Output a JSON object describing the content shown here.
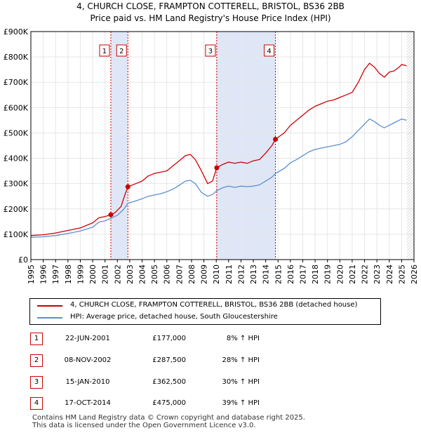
{
  "colors": {
    "property_line": "#cc0000",
    "hpi_line": "#5b8fd0",
    "band_fill": "#dfe7f7",
    "grid": "#e6e6e6",
    "marker_line": "#cc0000"
  },
  "chart_data": {
    "type": "line",
    "title": "4, CHURCH CLOSE, FRAMPTON COTTERELL, BRISTOL, BS36 2BB",
    "subtitle": "Price paid vs. HM Land Registry's House Price Index (HPI)",
    "xlabel": "",
    "ylabel": "",
    "xlim": [
      1995,
      2026
    ],
    "ylim": [
      0,
      900000
    ],
    "grid": true,
    "x_ticks": [
      "1995",
      "1996",
      "1997",
      "1998",
      "1999",
      "2000",
      "2001",
      "2002",
      "2003",
      "2004",
      "2005",
      "2006",
      "2007",
      "2008",
      "2009",
      "2010",
      "2011",
      "2012",
      "2013",
      "2014",
      "2015",
      "2016",
      "2017",
      "2018",
      "2019",
      "2020",
      "2021",
      "2022",
      "2023",
      "2024",
      "2025",
      "2026"
    ],
    "y_ticks": [
      {
        "value": 0,
        "label": "£0"
      },
      {
        "value": 100000,
        "label": "£100K"
      },
      {
        "value": 200000,
        "label": "£200K"
      },
      {
        "value": 300000,
        "label": "£300K"
      },
      {
        "value": 400000,
        "label": "£400K"
      },
      {
        "value": 500000,
        "label": "£500K"
      },
      {
        "value": 600000,
        "label": "£600K"
      },
      {
        "value": 700000,
        "label": "£700K"
      },
      {
        "value": 800000,
        "label": "£800K"
      },
      {
        "value": 900000,
        "label": "£900K"
      }
    ],
    "shaded_ranges": [
      [
        2001.47,
        2002.85
      ],
      [
        2010.04,
        2014.79
      ]
    ],
    "series": [
      {
        "name": "4, CHURCH CLOSE, FRAMPTON COTTERELL, BRISTOL, BS36 2BB (detached house)",
        "x": [
          1995,
          1996,
          1997,
          1998,
          1999,
          2000,
          2000.5,
          2001,
          2001.47,
          2001.8,
          2002.3,
          2002.6,
          2002.85,
          2003.5,
          2004,
          2004.5,
          2005,
          2005.5,
          2006,
          2006.5,
          2007,
          2007.5,
          2007.9,
          2008.3,
          2008.8,
          2009.3,
          2009.7,
          2010.04,
          2010.5,
          2011,
          2011.5,
          2012,
          2012.5,
          2013,
          2013.5,
          2014,
          2014.5,
          2014.79,
          2015.5,
          2016,
          2016.5,
          2017,
          2017.5,
          2018,
          2018.5,
          2019,
          2019.5,
          2020,
          2020.5,
          2021,
          2021.5,
          2022,
          2022.4,
          2022.8,
          2023.2,
          2023.6,
          2024,
          2024.4,
          2024.8,
          2025,
          2025.4
        ],
        "values": [
          95000,
          98000,
          105000,
          115000,
          125000,
          145000,
          165000,
          170000,
          177000,
          185000,
          210000,
          255000,
          287500,
          300000,
          310000,
          330000,
          340000,
          345000,
          350000,
          370000,
          390000,
          410000,
          415000,
          395000,
          350000,
          300000,
          310000,
          362500,
          375000,
          385000,
          380000,
          385000,
          380000,
          390000,
          395000,
          420000,
          450000,
          475000,
          500000,
          530000,
          550000,
          570000,
          590000,
          605000,
          615000,
          625000,
          630000,
          640000,
          650000,
          660000,
          700000,
          750000,
          775000,
          760000,
          735000,
          720000,
          740000,
          745000,
          760000,
          770000,
          765000
        ]
      },
      {
        "name": "HPI: Average price, detached house, South Gloucestershire",
        "x": [
          1995,
          1996,
          1997,
          1998,
          1999,
          2000,
          2000.5,
          2001,
          2001.47,
          2002,
          2002.5,
          2002.85,
          2003.5,
          2004,
          2004.5,
          2005,
          2005.5,
          2006,
          2006.5,
          2007,
          2007.5,
          2007.9,
          2008.3,
          2008.8,
          2009.3,
          2009.7,
          2010.04,
          2010.5,
          2011,
          2011.5,
          2012,
          2012.5,
          2013,
          2013.5,
          2014,
          2014.5,
          2014.79,
          2015.5,
          2016,
          2016.5,
          2017,
          2017.5,
          2018,
          2018.5,
          2019,
          2019.5,
          2020,
          2020.5,
          2021,
          2021.5,
          2022,
          2022.4,
          2022.8,
          2023.2,
          2023.6,
          2024,
          2024.4,
          2024.8,
          2025,
          2025.4
        ],
        "values": [
          88000,
          90000,
          95000,
          103000,
          113000,
          128000,
          148000,
          153000,
          163000,
          175000,
          198000,
          222000,
          232000,
          240000,
          250000,
          255000,
          260000,
          268000,
          278000,
          293000,
          310000,
          313000,
          300000,
          265000,
          250000,
          257000,
          272000,
          283000,
          290000,
          285000,
          290000,
          288000,
          290000,
          295000,
          310000,
          325000,
          340000,
          360000,
          382000,
          395000,
          410000,
          425000,
          435000,
          440000,
          445000,
          450000,
          455000,
          465000,
          485000,
          510000,
          535000,
          555000,
          545000,
          530000,
          520000,
          530000,
          540000,
          550000,
          555000,
          550000
        ]
      }
    ],
    "sale_points": [
      {
        "id": "1",
        "x": 2001.47,
        "value": 177000
      },
      {
        "id": "2",
        "x": 2002.85,
        "value": 287500
      },
      {
        "id": "3",
        "x": 2010.04,
        "value": 362500
      },
      {
        "id": "4",
        "x": 2014.79,
        "value": 475000
      }
    ],
    "forecast_start": 2025.42
  },
  "legend": {
    "property_label": "4, CHURCH CLOSE, FRAMPTON COTTERELL, BRISTOL, BS36 2BB (detached house)",
    "hpi_label": "HPI: Average price, detached house, South Gloucestershire"
  },
  "transactions": [
    {
      "id": "1",
      "date": "22-JUN-2001",
      "price": "£177,000",
      "hpi": "8% ↑ HPI"
    },
    {
      "id": "2",
      "date": "08-NOV-2002",
      "price": "£287,500",
      "hpi": "28% ↑ HPI"
    },
    {
      "id": "3",
      "date": "15-JAN-2010",
      "price": "£362,500",
      "hpi": "30% ↑ HPI"
    },
    {
      "id": "4",
      "date": "17-OCT-2014",
      "price": "£475,000",
      "hpi": "39% ↑ HPI"
    }
  ],
  "footer": {
    "line1": "Contains HM Land Registry data © Crown copyright and database right 2025.",
    "line2": "This data is licensed under the Open Government Licence v3.0."
  }
}
